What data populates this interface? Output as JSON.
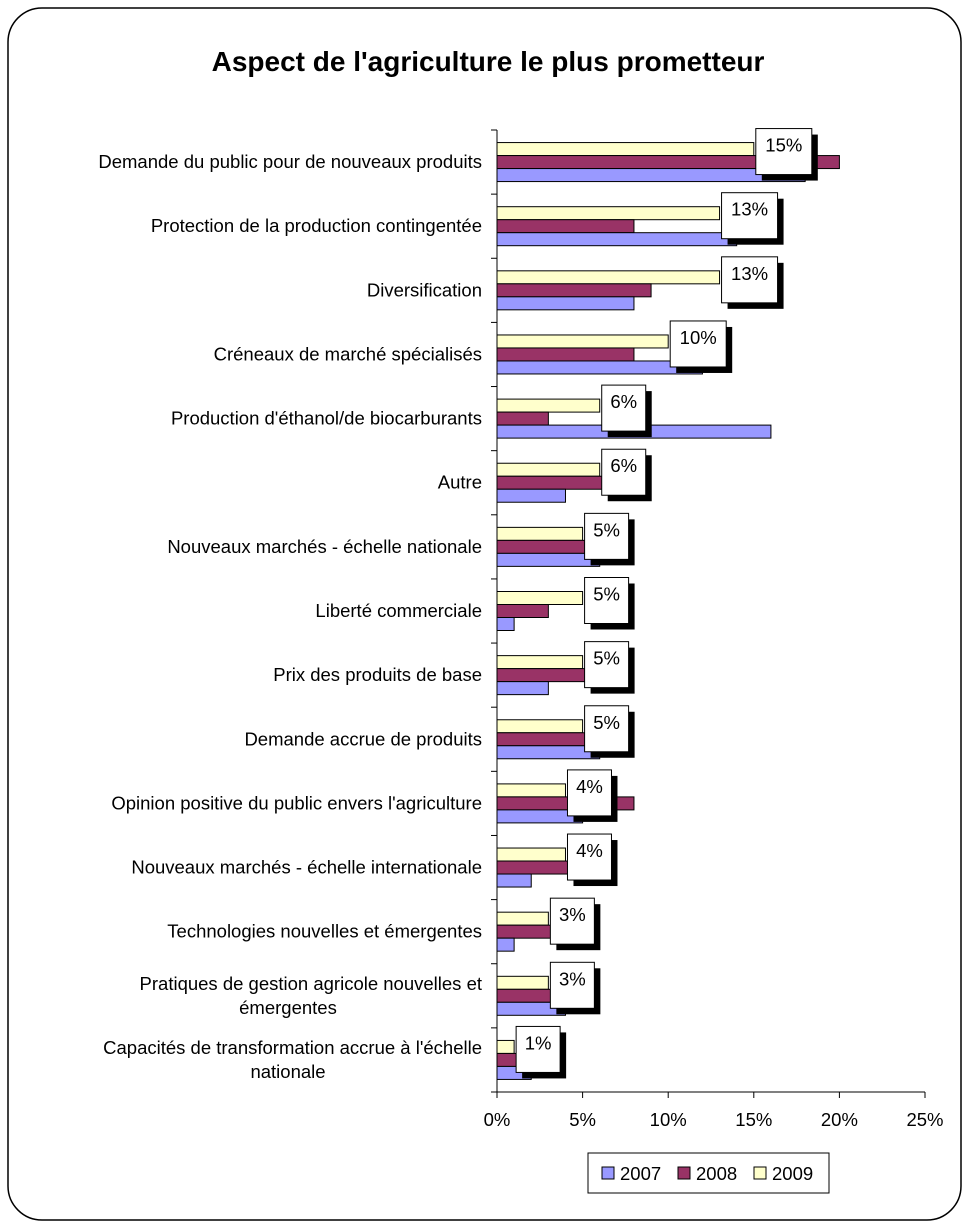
{
  "chart_data": {
    "type": "bar",
    "orientation": "horizontal",
    "title": "Aspect de l'agriculture le plus prometteur",
    "categories": [
      [
        "Demande du public pour de nouveaux produits"
      ],
      [
        "Protection de la production contingentée"
      ],
      [
        "Diversification"
      ],
      [
        "Créneaux de marché spécialisés"
      ],
      [
        "Production d'éthanol/de biocarburants"
      ],
      [
        "Autre"
      ],
      [
        "Nouveaux marchés - échelle nationale"
      ],
      [
        "Liberté commerciale"
      ],
      [
        "Prix des produits de base"
      ],
      [
        "Demande accrue de produits"
      ],
      [
        "Opinion positive du public envers l'agriculture"
      ],
      [
        "Nouveaux marchés - échelle internationale"
      ],
      [
        "Technologies nouvelles et émergentes"
      ],
      [
        "Pratiques de gestion agricole nouvelles et",
        "émergentes"
      ],
      [
        "Capacités de transformation accrue à l'échelle",
        "nationale"
      ]
    ],
    "series": [
      {
        "name": "2007",
        "color": "#9999ff",
        "values": [
          18,
          14,
          8,
          12,
          16,
          4,
          6,
          1,
          3,
          6,
          5,
          2,
          1,
          4,
          2
        ]
      },
      {
        "name": "2008",
        "color": "#993366",
        "values": [
          20,
          8,
          9,
          8,
          3,
          7,
          6,
          3,
          6,
          6,
          8,
          5,
          4,
          4,
          2
        ]
      },
      {
        "name": "2009",
        "color": "#ffffcc",
        "values": [
          15,
          13,
          13,
          10,
          6,
          6,
          5,
          5,
          5,
          5,
          4,
          4,
          3,
          3,
          1
        ]
      }
    ],
    "data_labels": [
      "15%",
      "13%",
      "13%",
      "10%",
      "6%",
      "6%",
      "5%",
      "5%",
      "5%",
      "5%",
      "4%",
      "4%",
      "3%",
      "3%",
      "1%"
    ],
    "xlim": [
      0,
      25
    ],
    "x_ticks": [
      "0%",
      "5%",
      "10%",
      "15%",
      "20%",
      "25%"
    ],
    "grid": false,
    "legend_position": "bottom-right"
  }
}
